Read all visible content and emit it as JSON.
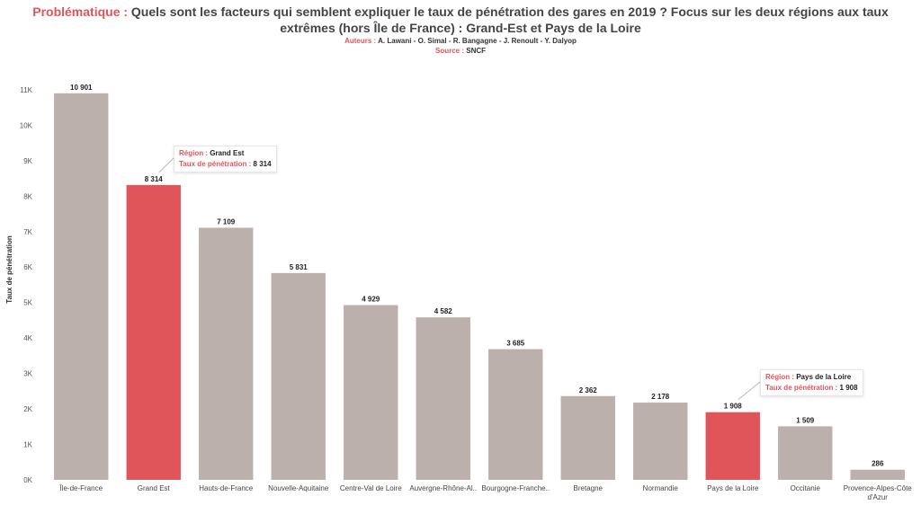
{
  "header": {
    "title_prefix": "Problématique :",
    "title_text": "Quels sont les facteurs qui semblent expliquer le taux de pénétration des gares en 2019 ?  Focus sur les deux régions aux taux extrêmes (hors Île de France) : Grand-Est et Pays de la Loire",
    "authors_label": "Auteurs :",
    "authors": "A. Lawani - O. Simal - R. Bangagne - J. Renoult - Y. Dalyop",
    "source_label": "Source :",
    "source": "SNCF"
  },
  "colors": {
    "default_bar": "#bbb0ab",
    "highlight_bar": "#e0555a",
    "accent_text": "#e0555a"
  },
  "chart_data": {
    "type": "bar",
    "ylabel": "Taux de pénétration",
    "ylim": [
      0,
      11200
    ],
    "yticks": [
      0,
      1000,
      2000,
      3000,
      4000,
      5000,
      6000,
      7000,
      8000,
      9000,
      10000,
      11000
    ],
    "ytick_labels": [
      "0K",
      "1K",
      "2K",
      "3K",
      "4K",
      "5K",
      "6K",
      "7K",
      "8K",
      "9K",
      "10K",
      "11K"
    ],
    "grid": false,
    "categories": [
      "Île-de-France",
      "Grand Est",
      "Hauts-de-France",
      "Nouvelle-Aquitaine",
      "Centre-Val de Loire",
      "Auvergne-Rhône-Al..",
      "Bourgogne-Franche..",
      "Bretagne",
      "Normandie",
      "Pays de la Loire",
      "Occitanie",
      "Provence-Alpes-Côte d'Azur"
    ],
    "values": [
      10901,
      8314,
      7109,
      5831,
      4929,
      4582,
      3685,
      2362,
      2178,
      1908,
      1509,
      286
    ],
    "value_labels": [
      "10 901",
      "8 314",
      "7 109",
      "5 831",
      "4 929",
      "4 582",
      "3 685",
      "2 362",
      "2 178",
      "1 908",
      "1 509",
      "286"
    ],
    "highlighted": [
      "Grand Est",
      "Pays de la Loire"
    ],
    "annotations": [
      {
        "category": "Grand Est",
        "region_key": "Région :",
        "region_value": "Grand Est",
        "rate_key": "Taux de pénétration :",
        "rate_value": "8 314"
      },
      {
        "category": "Pays de la Loire",
        "region_key": "Région :",
        "region_value": "Pays de la Loire",
        "rate_key": "Taux de pénétration :",
        "rate_value": "1 908"
      }
    ]
  }
}
